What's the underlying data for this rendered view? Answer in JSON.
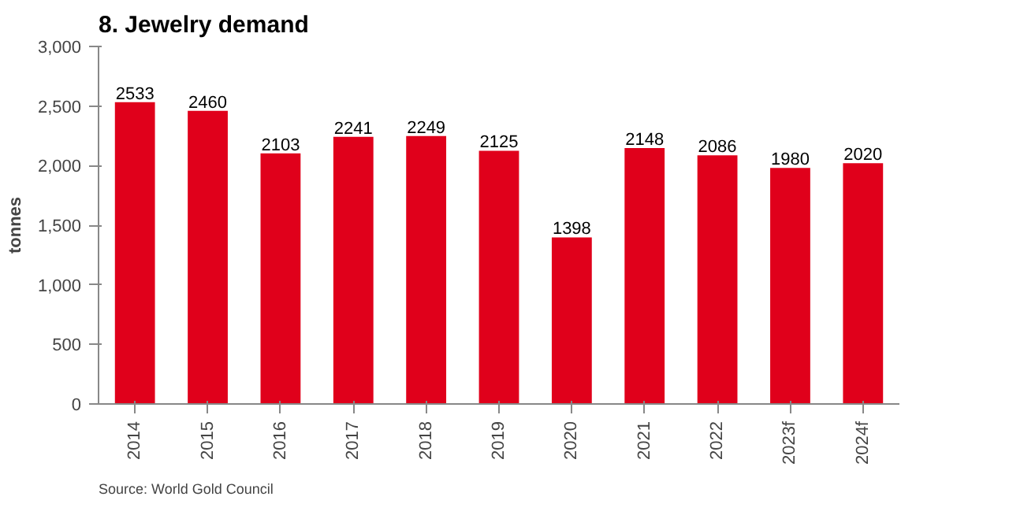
{
  "chart_data": {
    "type": "bar",
    "title": "8. Jewelry demand",
    "ylabel": "tonnes",
    "categories": [
      "2014",
      "2015",
      "2016",
      "2017",
      "2018",
      "2019",
      "2020",
      "2021",
      "2022",
      "2023f",
      "2024f"
    ],
    "values": [
      2533,
      2460,
      2103,
      2241,
      2249,
      2125,
      1398,
      2148,
      2086,
      1980,
      2020
    ],
    "color": "#e0001b",
    "data_labels": true,
    "grid": false,
    "ylim": [
      0,
      3000
    ],
    "yticks": [
      {
        "value": 0,
        "label": "0"
      },
      {
        "value": 500,
        "label": "500"
      },
      {
        "value": 1000,
        "label": "1,000"
      },
      {
        "value": 1500,
        "label": "1,500"
      },
      {
        "value": 2000,
        "label": "2,000"
      },
      {
        "value": 2500,
        "label": "2,500"
      },
      {
        "value": 3000,
        "label": "3,000"
      }
    ],
    "annotations": [
      "Source: World Gold Council"
    ]
  }
}
